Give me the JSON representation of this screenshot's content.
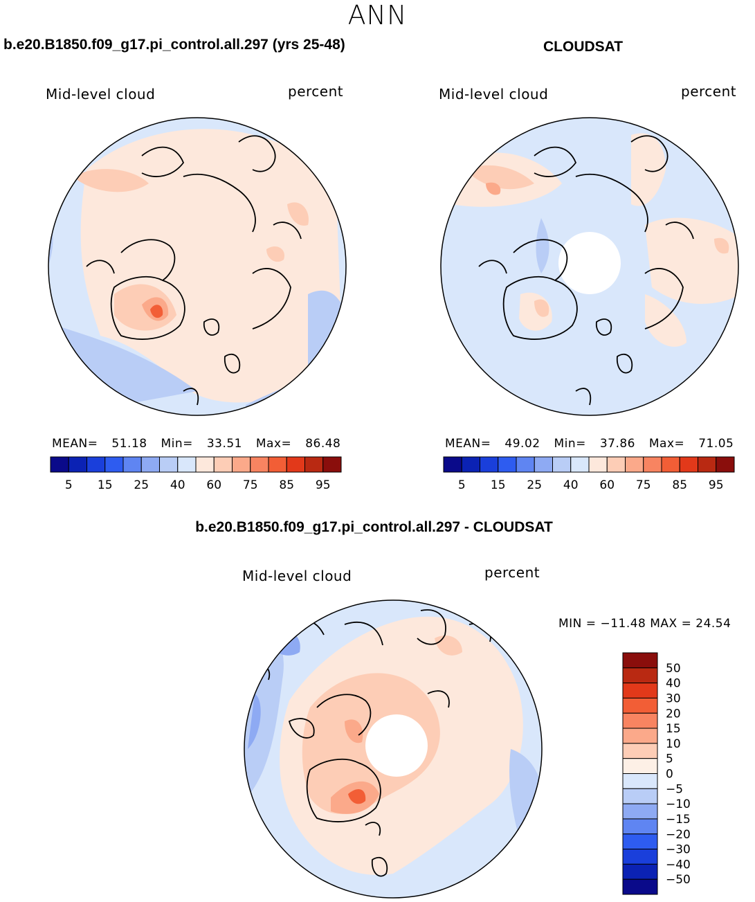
{
  "title": "ANN",
  "panels": [
    {
      "id": "model",
      "case_title": "b.e20.B1850.f09_g17.pi_control.all.297 (yrs 25-48)",
      "variable": "Mid-level cloud",
      "units": "percent",
      "stats": {
        "mean_label": "MEAN=",
        "mean": "51.18",
        "min_label": "Min=",
        "min": "33.51",
        "max_label": "Max=",
        "max": "86.48"
      },
      "pole_hole": false
    },
    {
      "id": "obs",
      "case_title": "CLOUDSAT",
      "variable": "Mid-level cloud",
      "units": "percent",
      "stats": {
        "mean_label": "MEAN=",
        "mean": "49.02",
        "min_label": "Min=",
        "min": "37.86",
        "max_label": "Max=",
        "max": "71.05"
      },
      "pole_hole": true
    },
    {
      "id": "diff",
      "case_title": "b.e20.B1850.f09_g17.pi_control.all.297 - CLOUDSAT",
      "variable": "Mid-level cloud",
      "units": "percent",
      "stats_line": "MIN = −11.48 MAX =   24.54",
      "pole_hole": true
    }
  ],
  "colorbar_abs": {
    "colors": [
      "#0a0a8a",
      "#0b22b4",
      "#1a3fdb",
      "#2e5cf0",
      "#5f85f2",
      "#8eaaf3",
      "#b9cdf6",
      "#d9e7fb",
      "#fde8dc",
      "#fdcdb6",
      "#fba98a",
      "#f88461",
      "#f25e36",
      "#e2391a",
      "#b92912",
      "#8a0e0c"
    ],
    "tick_labels": [
      "5",
      "15",
      "25",
      "40",
      "60",
      "75",
      "85",
      "95"
    ],
    "tick_slots": [
      1,
      3,
      5,
      7,
      9,
      11,
      13,
      15
    ]
  },
  "colorbar_diff": {
    "colors": [
      "#8a0e0c",
      "#b92912",
      "#e2391a",
      "#f25e36",
      "#f88461",
      "#fba98a",
      "#fdcdb6",
      "#fdf0e6",
      "#d9e7fb",
      "#b9cdf6",
      "#8eaaf3",
      "#5f85f2",
      "#2e5cf0",
      "#1a3fdb",
      "#0b22b4",
      "#0a0a8a"
    ],
    "tick_labels": [
      "50",
      "40",
      "30",
      "20",
      "15",
      "10",
      "5",
      "0",
      "−5",
      "−10",
      "−15",
      "−20",
      "−30",
      "−40",
      "−50"
    ]
  },
  "map_colors": {
    "light_blue": "#d9e7fb",
    "mid_blue": "#b9cdf6",
    "blue": "#8eaaf3",
    "peach": "#fde8dc",
    "salmon": "#fdcdb6",
    "orange": "#fba98a",
    "red_orange": "#f25e36"
  }
}
